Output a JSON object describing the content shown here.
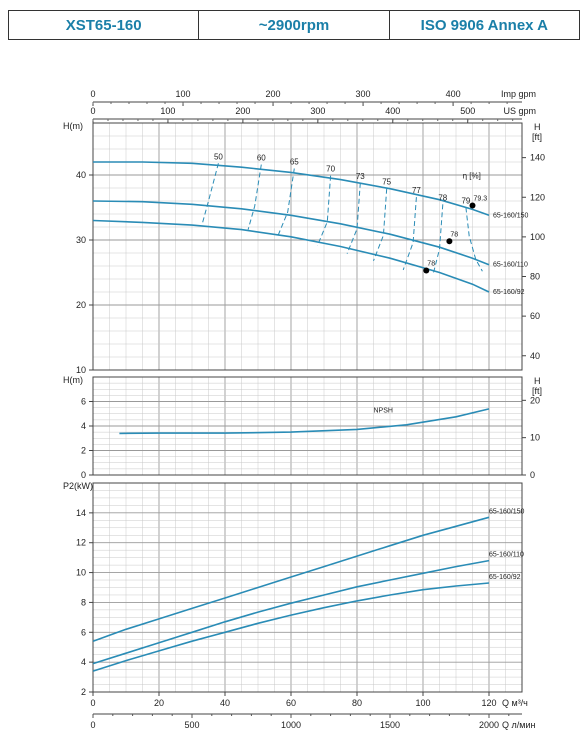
{
  "header": {
    "model": "XST65-160",
    "speed": "~2900rpm",
    "standard": "ISO 9906   Annex A"
  },
  "colors": {
    "curve": "#2a8cb6",
    "grid": "#c9c9c9",
    "title": "#1a7fa8",
    "point": "#000000"
  },
  "chart_data": [
    {
      "type": "line",
      "panel": "head",
      "ylabel": "H(m)",
      "ylabel_right": "H [ft]",
      "eff_label": "η [%]",
      "xlim": [
        0,
        130
      ],
      "ylim": [
        10,
        48
      ],
      "yticks": [
        10,
        20,
        30,
        40
      ],
      "yticks_right_ft": [
        40,
        60,
        80,
        100,
        120,
        140
      ],
      "top_scale_1": {
        "label": "Imp gpm",
        "ticks": [
          0,
          100,
          200,
          300,
          400,
          500
        ]
      },
      "top_scale_2": {
        "label": "US gpm",
        "ticks": [
          0,
          100,
          200,
          300,
          400,
          500
        ]
      },
      "series": [
        {
          "name": "65-160/150",
          "x": [
            0,
            15,
            30,
            45,
            60,
            75,
            90,
            105,
            115,
            120
          ],
          "y": [
            42,
            42,
            41.8,
            41.2,
            40.4,
            39.3,
            37.9,
            36.2,
            34.7,
            33.8
          ]
        },
        {
          "name": "65-160/110",
          "x": [
            0,
            15,
            30,
            45,
            60,
            75,
            90,
            105,
            115,
            120
          ],
          "y": [
            36,
            35.9,
            35.5,
            34.8,
            33.8,
            32.5,
            30.9,
            28.9,
            27.2,
            26.2
          ]
        },
        {
          "name": "65-160/92",
          "x": [
            0,
            15,
            30,
            45,
            60,
            75,
            90,
            105,
            115,
            120
          ],
          "y": [
            33,
            32.7,
            32.3,
            31.6,
            30.5,
            29,
            27.2,
            25,
            23.2,
            22
          ]
        }
      ],
      "efficiency_curves": [
        {
          "label": "50",
          "x": [
            38,
            35,
            33
          ],
          "y": [
            41.8,
            36,
            32.3
          ]
        },
        {
          "label": "60",
          "x": [
            51,
            49,
            47
          ],
          "y": [
            41.6,
            35.2,
            31.6
          ]
        },
        {
          "label": "65",
          "x": [
            61,
            59,
            56
          ],
          "y": [
            41,
            34.3,
            30.6
          ]
        },
        {
          "label": "70",
          "x": [
            72,
            71,
            68
          ],
          "y": [
            39.9,
            32.8,
            29.1
          ]
        },
        {
          "label": "73",
          "x": [
            81,
            80,
            77
          ],
          "y": [
            38.8,
            31.7,
            27.9
          ]
        },
        {
          "label": "75",
          "x": [
            89,
            88,
            85
          ],
          "y": [
            37.9,
            30.7,
            26.8
          ]
        },
        {
          "label": "77",
          "x": [
            98,
            97,
            94
          ],
          "y": [
            36.6,
            29.6,
            25.4
          ]
        },
        {
          "label": "78",
          "x": [
            106,
            105,
            103
          ],
          "y": [
            35.5,
            28.6,
            24.6
          ]
        },
        {
          "label": "79",
          "x": [
            113,
            114,
            116,
            118
          ],
          "y": [
            35,
            30.6,
            27,
            25.2
          ]
        }
      ],
      "bep_points": [
        {
          "label": "79.3",
          "x": 115,
          "y": 35.3
        },
        {
          "label": "78",
          "x": 108,
          "y": 29.8
        },
        {
          "label": "78",
          "x": 101,
          "y": 25.3
        }
      ]
    },
    {
      "type": "line",
      "panel": "npsh",
      "ylabel": "H(m)",
      "ylabel_right": "H [ft]",
      "xlim": [
        0,
        130
      ],
      "ylim": [
        0,
        8
      ],
      "yticks": [
        0,
        2,
        4,
        6
      ],
      "yticks_right_ft": [
        0,
        10,
        20
      ],
      "series": [
        {
          "name": "NPSH",
          "x": [
            8,
            20,
            40,
            60,
            80,
            95,
            110,
            120
          ],
          "y": [
            3.4,
            3.42,
            3.42,
            3.5,
            3.72,
            4.1,
            4.75,
            5.4
          ]
        }
      ]
    },
    {
      "type": "line",
      "panel": "power",
      "ylabel": "P2(kW)",
      "xlabel": "Q м³/ч",
      "xlabel2": "Q л/мин",
      "xlim": [
        0,
        130
      ],
      "ylim": [
        2,
        16
      ],
      "yticks": [
        2,
        4,
        6,
        8,
        10,
        12,
        14
      ],
      "xticks": [
        0,
        20,
        40,
        60,
        80,
        100,
        120
      ],
      "xticks_lmin": [
        0,
        500,
        1000,
        1500,
        2000
      ],
      "series": [
        {
          "name": "65-160/150",
          "x": [
            0,
            10,
            20,
            30,
            40,
            50,
            60,
            70,
            80,
            90,
            100,
            110,
            120
          ],
          "y": [
            5.4,
            6.2,
            6.9,
            7.6,
            8.3,
            9,
            9.7,
            10.4,
            11.1,
            11.8,
            12.5,
            13.1,
            13.7
          ]
        },
        {
          "name": "65-160/110",
          "x": [
            0,
            10,
            20,
            30,
            40,
            50,
            60,
            70,
            80,
            90,
            100,
            110,
            120
          ],
          "y": [
            3.9,
            4.6,
            5.3,
            6,
            6.7,
            7.35,
            7.95,
            8.5,
            9.05,
            9.5,
            9.95,
            10.4,
            10.8
          ]
        },
        {
          "name": "65-160/92",
          "x": [
            0,
            10,
            20,
            30,
            40,
            50,
            60,
            70,
            80,
            90,
            100,
            110,
            120
          ],
          "y": [
            3.4,
            4.1,
            4.75,
            5.4,
            6,
            6.6,
            7.15,
            7.65,
            8.1,
            8.5,
            8.85,
            9.1,
            9.3
          ]
        }
      ]
    }
  ]
}
